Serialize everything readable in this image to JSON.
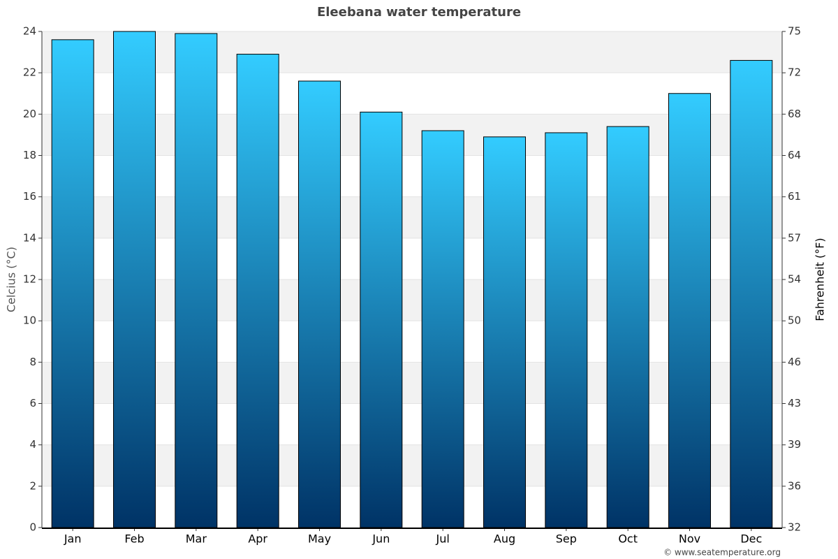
{
  "chart_data": {
    "type": "bar",
    "title": "Eleebana water temperature",
    "y_label": "Celcius (°C)",
    "y2_label": "Fahrenheit (°F)",
    "credit": "© www.seatemperature.org",
    "categories": [
      "Jan",
      "Feb",
      "Mar",
      "Apr",
      "May",
      "Jun",
      "Jul",
      "Aug",
      "Sep",
      "Oct",
      "Nov",
      "Dec"
    ],
    "values": [
      23.6,
      24.0,
      23.9,
      22.9,
      21.6,
      20.1,
      19.2,
      18.9,
      19.1,
      19.4,
      21.0,
      22.6
    ],
    "color_top": "#33ccff",
    "color_bottom": "#003366",
    "ylim": [
      0,
      24
    ],
    "yticks": [
      0,
      2,
      4,
      6,
      8,
      10,
      12,
      14,
      16,
      18,
      20,
      22,
      24
    ],
    "y2lim": [
      32,
      75.2
    ],
    "y2ticks": [
      32,
      {
        "value": 35.6,
        "label": "36"
      },
      {
        "value": 39.2,
        "label": "39"
      },
      {
        "value": 42.8,
        "label": "43"
      },
      {
        "value": 46.4,
        "label": "46"
      },
      50,
      {
        "value": 53.6,
        "label": "54"
      },
      {
        "value": 57.2,
        "label": "57"
      },
      {
        "value": 60.8,
        "label": "61"
      },
      {
        "value": 64.4,
        "label": "64"
      },
      68,
      {
        "value": 71.6,
        "label": "72"
      },
      {
        "value": 75.2,
        "label": "75"
      }
    ],
    "grid": true
  }
}
